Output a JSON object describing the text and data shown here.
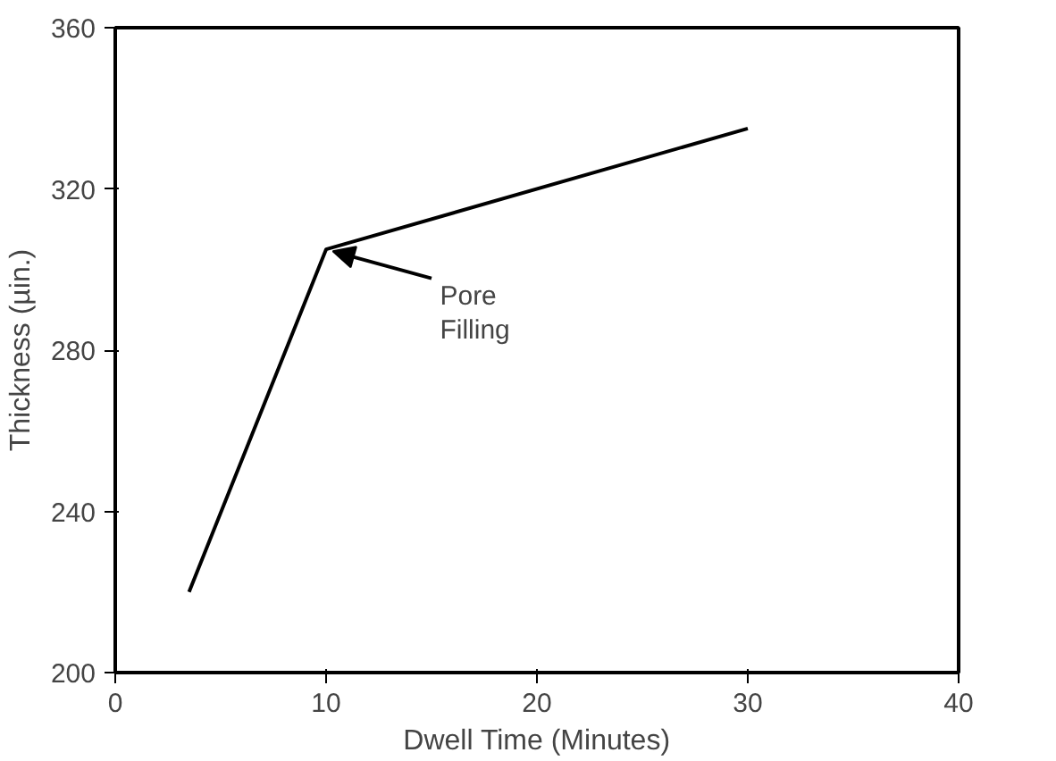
{
  "chart_data": {
    "type": "line",
    "xlabel": "Dwell Time (Minutes)",
    "ylabel": "Thickness (µin.)",
    "x": [
      3.5,
      10,
      30
    ],
    "series": [
      {
        "color": "#000000",
        "values": [
          220,
          305,
          335
        ]
      }
    ],
    "xlim": [
      0,
      40
    ],
    "xticks": [
      0,
      10,
      20,
      30,
      40
    ],
    "ylim": [
      200,
      360
    ],
    "yticks": [
      200,
      240,
      280,
      320,
      360
    ],
    "grid": false,
    "marker": "none",
    "line_style": "solid",
    "annotations": [
      {
        "text": "Pore\nFilling",
        "x": 10,
        "y": 305
      }
    ]
  }
}
